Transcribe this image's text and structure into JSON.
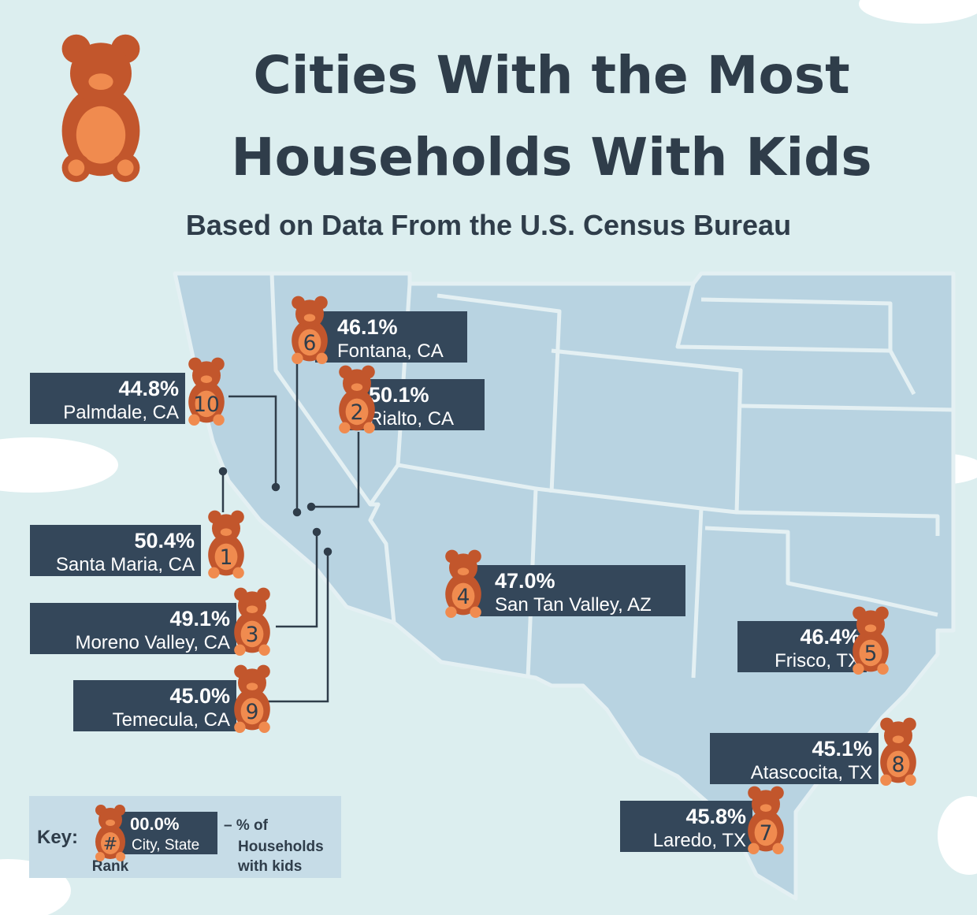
{
  "header": {
    "title": [
      "Cities With the Most",
      "Households With Kids"
    ],
    "subtitle": "Based on Data From the U.S. Census Bureau"
  },
  "cities": [
    {
      "rank": "1",
      "percent": "50.4%",
      "city": "Santa Maria, CA"
    },
    {
      "rank": "2",
      "percent": "50.1%",
      "city": "Rialto, CA"
    },
    {
      "rank": "3",
      "percent": "49.1%",
      "city": "Moreno Valley, CA"
    },
    {
      "rank": "4",
      "percent": "47.0%",
      "city": "San Tan Valley, AZ"
    },
    {
      "rank": "5",
      "percent": "46.4%",
      "city": "Frisco, TX"
    },
    {
      "rank": "6",
      "percent": "46.1%",
      "city": "Fontana, CA"
    },
    {
      "rank": "7",
      "percent": "45.8%",
      "city": "Laredo, TX"
    },
    {
      "rank": "8",
      "percent": "45.1%",
      "city": "Atascocita, TX"
    },
    {
      "rank": "9",
      "percent": "45.0%",
      "city": "Temecula, CA"
    },
    {
      "rank": "10",
      "percent": "44.8%",
      "city": "Palmdale, CA"
    }
  ],
  "key": {
    "label": "Key:",
    "rank_symbol": "#",
    "percent": "00.0%",
    "city": "City, State",
    "rank_label": "Rank",
    "description": [
      "– % of",
      "Households",
      "with kids"
    ]
  }
}
